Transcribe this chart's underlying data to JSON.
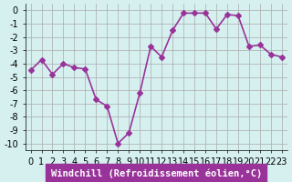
{
  "x": [
    0,
    1,
    2,
    3,
    4,
    5,
    6,
    7,
    8,
    9,
    10,
    11,
    12,
    13,
    14,
    15,
    16,
    17,
    18,
    19,
    20,
    21,
    22,
    23
  ],
  "y": [
    -4.5,
    -3.7,
    -4.8,
    -4.0,
    -4.3,
    -4.4,
    -6.7,
    -7.2,
    -10.0,
    -9.2,
    -6.2,
    -2.7,
    -3.5,
    -1.5,
    -0.2,
    -0.2,
    -0.2,
    -1.4,
    -0.3,
    -0.4,
    -2.7,
    -2.6,
    -3.3,
    -3.5
  ],
  "line_color": "#993399",
  "marker": "D",
  "marker_size": 3,
  "linewidth": 1.2,
  "bg_color": "#d6f0f0",
  "grid_color": "#aaaaaa",
  "xlabel": "Windchill (Refroidissement éolien,°C)",
  "xlabel_color": "#ffffff",
  "xlabel_bg": "#993399",
  "ylabel_ticks": [
    0,
    -1,
    -2,
    -3,
    -4,
    -5,
    -6,
    -7,
    -8,
    -9,
    -10
  ],
  "ylim": [
    -10.5,
    0.5
  ],
  "xlim": [
    -0.5,
    23.5
  ],
  "tick_fontsize": 7,
  "label_fontsize": 7.5
}
